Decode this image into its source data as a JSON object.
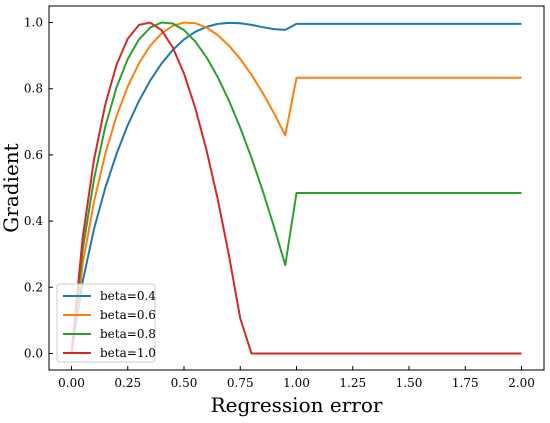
{
  "chart_data": {
    "type": "line",
    "title": "",
    "xlabel": "Regression error",
    "ylabel": "Gradient",
    "xlim": [
      -0.1,
      2.1
    ],
    "ylim": [
      -0.05,
      1.05
    ],
    "xticks": [
      "0.00",
      "0.25",
      "0.50",
      "0.75",
      "1.00",
      "1.25",
      "1.50",
      "1.75",
      "2.00"
    ],
    "yticks": [
      "0.0",
      "0.2",
      "0.4",
      "0.6",
      "0.8",
      "1.0"
    ],
    "grid": false,
    "legend_position": "lower-left",
    "series": [
      {
        "name": "beta=0.4",
        "color": "#1f77b4",
        "x": [
          0,
          0.05,
          0.1,
          0.15,
          0.2,
          0.25,
          0.3,
          0.35,
          0.4,
          0.45,
          0.5,
          0.55,
          0.6,
          0.65,
          0.7,
          0.75,
          0.8,
          0.85,
          0.9,
          0.95,
          1.0,
          1.25,
          1.5,
          1.75,
          2.0
        ],
        "y": [
          0.0,
          0.219,
          0.376,
          0.5,
          0.603,
          0.69,
          0.763,
          0.825,
          0.876,
          0.917,
          0.949,
          0.972,
          0.987,
          0.996,
          0.999,
          0.998,
          0.993,
          0.986,
          0.98,
          0.978,
          0.996,
          0.996,
          0.996,
          0.996,
          0.996
        ]
      },
      {
        "name": "beta=0.6",
        "color": "#ff7f0e",
        "x": [
          0,
          0.05,
          0.1,
          0.15,
          0.2,
          0.25,
          0.3,
          0.35,
          0.4,
          0.45,
          0.5,
          0.55,
          0.6,
          0.65,
          0.7,
          0.75,
          0.8,
          0.85,
          0.9,
          0.95,
          1.0,
          1.25,
          1.5,
          1.75,
          2.0
        ],
        "y": [
          0.0,
          0.271,
          0.459,
          0.603,
          0.717,
          0.807,
          0.877,
          0.93,
          0.967,
          0.99,
          1.0,
          0.998,
          0.985,
          0.962,
          0.93,
          0.89,
          0.842,
          0.787,
          0.726,
          0.659,
          0.833,
          0.833,
          0.833,
          0.833,
          0.833
        ]
      },
      {
        "name": "beta=0.8",
        "color": "#2ca02c",
        "x": [
          0,
          0.05,
          0.1,
          0.15,
          0.2,
          0.25,
          0.3,
          0.35,
          0.4,
          0.45,
          0.5,
          0.55,
          0.6,
          0.65,
          0.7,
          0.75,
          0.8,
          0.85,
          0.9,
          0.95,
          1.0,
          1.25,
          1.5,
          1.75,
          2.0
        ],
        "y": [
          0.0,
          0.314,
          0.527,
          0.685,
          0.804,
          0.89,
          0.949,
          0.985,
          1.0,
          0.997,
          0.977,
          0.943,
          0.895,
          0.835,
          0.764,
          0.682,
          0.591,
          0.491,
          0.383,
          0.267,
          0.485,
          0.485,
          0.485,
          0.485,
          0.485
        ]
      },
      {
        "name": "beta=1.0",
        "color": "#d62728",
        "x": [
          0,
          0.05,
          0.1,
          0.15,
          0.2,
          0.25,
          0.3,
          0.35,
          0.4,
          0.45,
          0.5,
          0.55,
          0.6,
          0.65,
          0.7,
          0.75,
          0.8,
          0.85,
          0.9,
          0.95,
          1.0,
          1.25,
          1.5,
          1.75,
          2.0
        ],
        "y": [
          0.0,
          0.352,
          0.585,
          0.752,
          0.872,
          0.951,
          0.993,
          1.0,
          0.977,
          0.925,
          0.846,
          0.742,
          0.615,
          0.466,
          0.296,
          0.106,
          0.0,
          0.0,
          0.0,
          0.0,
          0.0,
          0.0,
          0.0,
          0.0,
          0.0
        ]
      }
    ]
  }
}
